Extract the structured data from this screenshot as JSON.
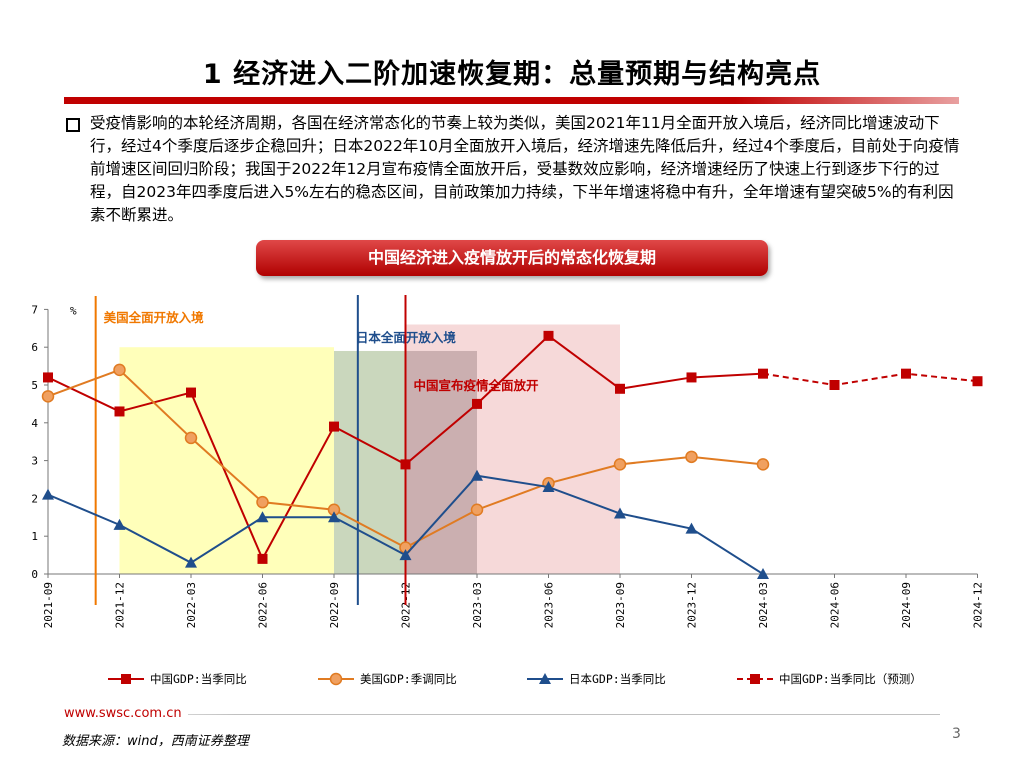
{
  "header": {
    "title": "1 经济进入二阶加速恢复期：总量预期与结构亮点"
  },
  "body": {
    "bullet_text": "受疫情影响的本轮经济周期，各国在经济常态化的节奏上较为类似，美国2021年11月全面开放入境后，经济同比增速波动下行，经过4个季度后逐步企稳回升；日本2022年10月全面放开入境后，经济增速先降低后升，经过4个季度后，目前处于向疫情前增速区间回归阶段；我国于2022年12月宣布疫情全面放开后，受基数效应影响，经济增速经历了快速上行到逐步下行的过程，自2023年四季度后进入5%左右的稳态区间，目前政策加力持续，下半年增速将稳中有升，全年增速有望突破5%的有利因素不断累进。"
  },
  "banner": {
    "label": "中国经济进入疫情放开后的常态化恢复期"
  },
  "footer": {
    "url": "www.swsc.com.cn",
    "source": "数据来源：wind，西南证券整理",
    "page": "3"
  },
  "colors": {
    "china": "#c00000",
    "us": "#e07b22",
    "japan": "#1f4e8c",
    "us_line": "#f07800",
    "zone_yellow": "#ffff66",
    "zone_green": "#7a9a5a",
    "zone_purple": "#9a8fb8",
    "zone_pink": "#e8a0a0"
  },
  "chart_data": {
    "type": "line",
    "unit": "%",
    "categories": [
      "2021-09",
      "2021-12",
      "2022-03",
      "2022-06",
      "2022-09",
      "2022-12",
      "2023-03",
      "2023-06",
      "2023-09",
      "2023-12",
      "2024-03",
      "2024-06",
      "2024-09",
      "2024-12"
    ],
    "yticks": [
      "0",
      "1",
      "2",
      "3",
      "4",
      "5",
      "6",
      "7"
    ],
    "ylim": [
      0,
      7
    ],
    "series": [
      {
        "name": "中国GDP:当季同比",
        "marker": "square",
        "dashed": false,
        "values": [
          5.2,
          4.3,
          4.8,
          0.4,
          3.9,
          2.9,
          4.5,
          6.3,
          4.9,
          5.2,
          5.3,
          null,
          null,
          null
        ]
      },
      {
        "name": "美国GDP:季调同比",
        "marker": "circle",
        "dashed": false,
        "values": [
          4.7,
          5.4,
          3.6,
          1.9,
          1.7,
          0.7,
          1.7,
          2.4,
          2.9,
          3.1,
          2.9,
          null,
          null,
          null
        ]
      },
      {
        "name": "日本GDP:当季同比",
        "marker": "triangle",
        "dashed": false,
        "values": [
          2.1,
          1.3,
          0.3,
          1.5,
          1.5,
          0.5,
          2.6,
          2.3,
          1.6,
          1.2,
          0.0,
          null,
          null,
          null
        ]
      },
      {
        "name": "中国GDP:当季同比（预测）",
        "marker": "square",
        "dashed": true,
        "values": [
          null,
          null,
          null,
          null,
          null,
          null,
          null,
          null,
          null,
          null,
          5.3,
          5.0,
          5.3,
          5.1
        ]
      }
    ],
    "annotations": [
      {
        "label": "美国全面开放入境",
        "at": "2021-11",
        "color": "us_line"
      },
      {
        "label": "日本全面开放入境",
        "at": "2022-10",
        "color": "japan"
      },
      {
        "label": "中国宣布疫情全面放开",
        "at": "2022-12",
        "color": "china"
      }
    ],
    "zones": [
      {
        "from": "2021-12",
        "to": "2022-09",
        "color": "zone_yellow",
        "y_top": 6.0
      },
      {
        "from": "2022-09",
        "to": "2023-03",
        "color": "zone_green",
        "y_top": 5.9
      },
      {
        "from": "2022-12",
        "to": "2023-03",
        "color": "zone_purple",
        "y_top": 5.9
      },
      {
        "from": "2022-12",
        "to": "2023-09",
        "color": "zone_pink",
        "y_top": 6.6
      }
    ],
    "legend_position": "bottom"
  }
}
